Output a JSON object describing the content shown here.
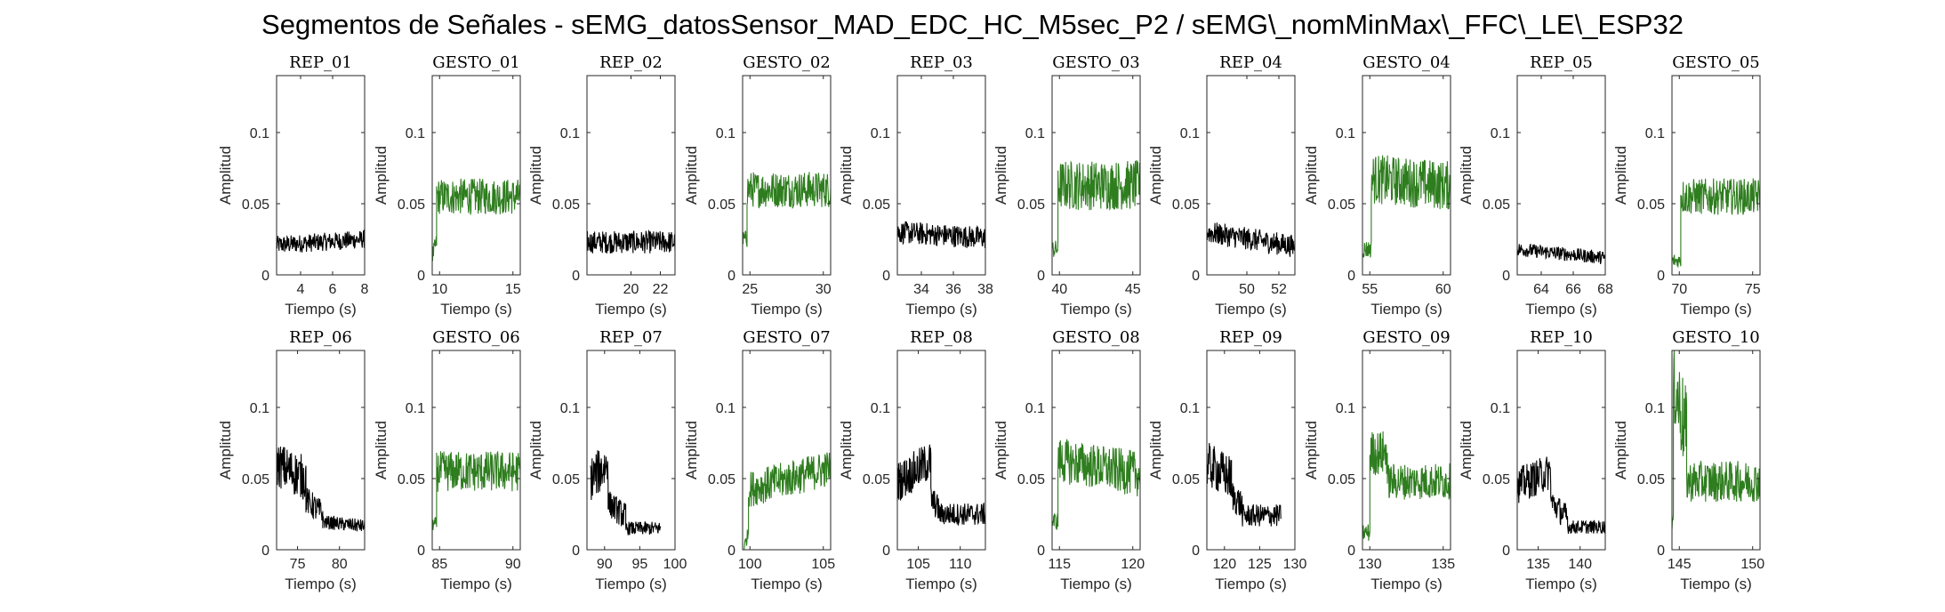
{
  "figure": {
    "title": "Segmentos de Señales - sEMG_datosSensor_MAD_EDC_HC_M5sec_P2 / sEMG\\_nomMinMax\\_FFC\\_LE\\_ESP32",
    "colors": {
      "rep": "#000000",
      "gesto": "#2e7d1e",
      "axes": "#262626"
    }
  },
  "chart_data": [
    {
      "type": "line",
      "title": "REP_01",
      "xlabel": "Tiempo (s)",
      "ylabel": "Amplitud",
      "xlim": [
        2.5,
        8
      ],
      "ylim": [
        0,
        0.14
      ],
      "xticks": [
        4,
        6,
        8
      ],
      "yticks": [
        0,
        0.05,
        0.1
      ],
      "ytick_labels": [
        "0",
        "0.05",
        "0.1"
      ],
      "series": [
        {
          "color": "#000000",
          "segments": [
            {
              "x_start": 2.5,
              "x_end": 8.0,
              "level": 0.023,
              "noise": 0.004,
              "trend": 0.004
            }
          ]
        }
      ]
    },
    {
      "type": "line",
      "title": "GESTO_01",
      "xlabel": "Tiempo (s)",
      "ylabel": "Amplitud",
      "xlim": [
        9.5,
        15.5
      ],
      "ylim": [
        0,
        0.14
      ],
      "xticks": [
        10,
        15
      ],
      "yticks": [
        0,
        0.05,
        0.1
      ],
      "ytick_labels": [
        "0",
        "0.05",
        "0.1"
      ],
      "series": [
        {
          "color": "#2e7d1e",
          "segments": [
            {
              "x_start": 9.5,
              "x_end": 9.8,
              "level": 0.018,
              "noise": 0.004,
              "trend": 0.01
            },
            {
              "x_start": 9.8,
              "x_end": 15.5,
              "level": 0.055,
              "noise": 0.008,
              "trend": 0.0
            }
          ]
        }
      ]
    },
    {
      "type": "line",
      "title": "REP_02",
      "xlabel": "Tiempo (s)",
      "ylabel": "Amplitud",
      "xlim": [
        17,
        23
      ],
      "ylim": [
        0,
        0.14
      ],
      "xticks": [
        20,
        22
      ],
      "yticks": [
        0,
        0.05,
        0.1
      ],
      "ytick_labels": [
        "0",
        "0.05",
        "0.1"
      ],
      "series": [
        {
          "color": "#000000",
          "segments": [
            {
              "x_start": 17.0,
              "x_end": 23.0,
              "level": 0.023,
              "noise": 0.005,
              "trend": 0.0
            }
          ]
        }
      ]
    },
    {
      "type": "line",
      "title": "GESTO_02",
      "xlabel": "Tiempo (s)",
      "ylabel": "Amplitud",
      "xlim": [
        24.5,
        30.5
      ],
      "ylim": [
        0,
        0.14
      ],
      "xticks": [
        25,
        30
      ],
      "yticks": [
        0,
        0.05,
        0.1
      ],
      "ytick_labels": [
        "0",
        "0.05",
        "0.1"
      ],
      "series": [
        {
          "color": "#2e7d1e",
          "segments": [
            {
              "x_start": 24.5,
              "x_end": 24.8,
              "level": 0.025,
              "noise": 0.004,
              "trend": 0.0
            },
            {
              "x_start": 24.8,
              "x_end": 30.5,
              "level": 0.06,
              "noise": 0.008,
              "trend": 0.0
            }
          ]
        }
      ]
    },
    {
      "type": "line",
      "title": "REP_03",
      "xlabel": "Tiempo (s)",
      "ylabel": "Amplitud",
      "xlim": [
        32.5,
        38
      ],
      "ylim": [
        0,
        0.14
      ],
      "xticks": [
        34,
        36,
        38
      ],
      "yticks": [
        0,
        0.05,
        0.1
      ],
      "ytick_labels": [
        "0",
        "0.05",
        "0.1"
      ],
      "series": [
        {
          "color": "#000000",
          "segments": [
            {
              "x_start": 32.5,
              "x_end": 38.0,
              "level": 0.028,
              "noise": 0.005,
              "trend": -0.004
            }
          ]
        }
      ]
    },
    {
      "type": "line",
      "title": "GESTO_03",
      "xlabel": "Tiempo (s)",
      "ylabel": "Amplitud",
      "xlim": [
        39.5,
        45.5
      ],
      "ylim": [
        0,
        0.14
      ],
      "xticks": [
        40,
        45
      ],
      "yticks": [
        0,
        0.05,
        0.1
      ],
      "ytick_labels": [
        "0",
        "0.05",
        "0.1"
      ],
      "series": [
        {
          "color": "#2e7d1e",
          "segments": [
            {
              "x_start": 39.5,
              "x_end": 39.9,
              "level": 0.018,
              "noise": 0.004,
              "trend": 0.0
            },
            {
              "x_start": 39.9,
              "x_end": 45.5,
              "level": 0.063,
              "noise": 0.011,
              "trend": 0.0
            }
          ]
        }
      ]
    },
    {
      "type": "line",
      "title": "REP_04",
      "xlabel": "Tiempo (s)",
      "ylabel": "Amplitud",
      "xlim": [
        47.5,
        53
      ],
      "ylim": [
        0,
        0.14
      ],
      "xticks": [
        50,
        52
      ],
      "yticks": [
        0,
        0.05,
        0.1
      ],
      "ytick_labels": [
        "0",
        "0.05",
        "0.1"
      ],
      "series": [
        {
          "color": "#000000",
          "segments": [
            {
              "x_start": 47.5,
              "x_end": 53.0,
              "level": 0.025,
              "noise": 0.005,
              "trend": -0.01
            }
          ]
        }
      ]
    },
    {
      "type": "line",
      "title": "GESTO_04",
      "xlabel": "Tiempo (s)",
      "ylabel": "Amplitud",
      "xlim": [
        54.5,
        60.5
      ],
      "ylim": [
        0,
        0.14
      ],
      "xticks": [
        55,
        60
      ],
      "yticks": [
        0,
        0.05,
        0.1
      ],
      "ytick_labels": [
        "0",
        "0.05",
        "0.1"
      ],
      "series": [
        {
          "color": "#2e7d1e",
          "segments": [
            {
              "x_start": 54.5,
              "x_end": 55.1,
              "level": 0.018,
              "noise": 0.004,
              "trend": 0.0
            },
            {
              "x_start": 55.1,
              "x_end": 60.5,
              "level": 0.065,
              "noise": 0.011,
              "trend": -0.005
            }
          ]
        }
      ]
    },
    {
      "type": "line",
      "title": "REP_05",
      "xlabel": "Tiempo (s)",
      "ylabel": "Amplitud",
      "xlim": [
        62.5,
        68
      ],
      "ylim": [
        0,
        0.14
      ],
      "xticks": [
        64,
        66,
        68
      ],
      "yticks": [
        0,
        0.05,
        0.1
      ],
      "ytick_labels": [
        "0",
        "0.05",
        "0.1"
      ],
      "series": [
        {
          "color": "#000000",
          "segments": [
            {
              "x_start": 62.5,
              "x_end": 68.0,
              "level": 0.015,
              "noise": 0.003,
              "trend": -0.006
            }
          ]
        }
      ]
    },
    {
      "type": "line",
      "title": "GESTO_05",
      "xlabel": "Tiempo (s)",
      "ylabel": "Amplitud",
      "xlim": [
        69.5,
        75.5
      ],
      "ylim": [
        0,
        0.14
      ],
      "xticks": [
        70,
        75
      ],
      "yticks": [
        0,
        0.05,
        0.1
      ],
      "ytick_labels": [
        "0",
        "0.05",
        "0.1"
      ],
      "series": [
        {
          "color": "#2e7d1e",
          "segments": [
            {
              "x_start": 69.5,
              "x_end": 70.1,
              "level": 0.01,
              "noise": 0.003,
              "trend": 0.0
            },
            {
              "x_start": 70.1,
              "x_end": 75.5,
              "level": 0.055,
              "noise": 0.008,
              "trend": 0.0
            }
          ]
        }
      ]
    },
    {
      "type": "line",
      "title": "REP_06",
      "xlabel": "Tiempo (s)",
      "ylabel": "Amplitud",
      "xlim": [
        72.5,
        83
      ],
      "ylim": [
        0,
        0.14
      ],
      "xticks": [
        75,
        80
      ],
      "yticks": [
        0,
        0.05,
        0.1
      ],
      "ytick_labels": [
        "0",
        "0.05",
        "0.1"
      ],
      "series": [
        {
          "color": "#000000",
          "segments": [
            {
              "x_start": 72.5,
              "x_end": 76.0,
              "level": 0.055,
              "noise": 0.01,
              "trend": -0.01
            },
            {
              "x_start": 76.0,
              "x_end": 78.0,
              "level": 0.03,
              "noise": 0.006,
              "trend": -0.01
            },
            {
              "x_start": 78.0,
              "x_end": 83.0,
              "level": 0.018,
              "noise": 0.003,
              "trend": -0.003
            }
          ]
        }
      ]
    },
    {
      "type": "line",
      "title": "GESTO_06",
      "xlabel": "Tiempo (s)",
      "ylabel": "Amplitud",
      "xlim": [
        84.5,
        90.5
      ],
      "ylim": [
        0,
        0.14
      ],
      "xticks": [
        85,
        90
      ],
      "yticks": [
        0,
        0.05,
        0.1
      ],
      "ytick_labels": [
        "0",
        "0.05",
        "0.1"
      ],
      "series": [
        {
          "color": "#2e7d1e",
          "segments": [
            {
              "x_start": 84.5,
              "x_end": 84.8,
              "level": 0.018,
              "noise": 0.003,
              "trend": 0.0
            },
            {
              "x_start": 84.8,
              "x_end": 90.5,
              "level": 0.055,
              "noise": 0.009,
              "trend": 0.0
            }
          ]
        }
      ]
    },
    {
      "type": "line",
      "title": "REP_07",
      "xlabel": "Tiempo (s)",
      "ylabel": "Amplitud",
      "xlim": [
        87.5,
        100
      ],
      "ylim": [
        0,
        0.14
      ],
      "xticks": [
        90,
        95,
        100
      ],
      "yticks": [
        0,
        0.05,
        0.1
      ],
      "ytick_labels": [
        "0",
        "0.05",
        "0.1"
      ],
      "series": [
        {
          "color": "#000000",
          "segments": [
            {
              "x_start": 88.0,
              "x_end": 90.5,
              "level": 0.055,
              "noise": 0.01,
              "trend": 0.01
            },
            {
              "x_start": 90.5,
              "x_end": 93.0,
              "level": 0.028,
              "noise": 0.006,
              "trend": -0.01
            },
            {
              "x_start": 93.0,
              "x_end": 98.0,
              "level": 0.015,
              "noise": 0.003,
              "trend": 0.0
            }
          ]
        }
      ]
    },
    {
      "type": "line",
      "title": "GESTO_07",
      "xlabel": "Tiempo (s)",
      "ylabel": "Amplitud",
      "xlim": [
        99.5,
        105.5
      ],
      "ylim": [
        0,
        0.14
      ],
      "xticks": [
        100,
        105
      ],
      "yticks": [
        0,
        0.05,
        0.1
      ],
      "ytick_labels": [
        "0",
        "0.05",
        "0.1"
      ],
      "series": [
        {
          "color": "#2e7d1e",
          "segments": [
            {
              "x_start": 99.5,
              "x_end": 99.9,
              "level": 0.005,
              "noise": 0.003,
              "trend": 0.015
            },
            {
              "x_start": 99.9,
              "x_end": 105.5,
              "level": 0.05,
              "noise": 0.008,
              "trend": 0.015
            }
          ]
        }
      ]
    },
    {
      "type": "line",
      "title": "REP_08",
      "xlabel": "Tiempo (s)",
      "ylabel": "Amplitud",
      "xlim": [
        102.5,
        113
      ],
      "ylim": [
        0,
        0.14
      ],
      "xticks": [
        105,
        110
      ],
      "yticks": [
        0,
        0.05,
        0.1
      ],
      "ytick_labels": [
        "0",
        "0.05",
        "0.1"
      ],
      "series": [
        {
          "color": "#000000",
          "segments": [
            {
              "x_start": 102.5,
              "x_end": 106.5,
              "level": 0.055,
              "noise": 0.009,
              "trend": 0.015
            },
            {
              "x_start": 106.5,
              "x_end": 107.5,
              "level": 0.032,
              "noise": 0.006,
              "trend": -0.008
            },
            {
              "x_start": 107.5,
              "x_end": 113.0,
              "level": 0.025,
              "noise": 0.005,
              "trend": 0.0
            }
          ]
        }
      ]
    },
    {
      "type": "line",
      "title": "GESTO_08",
      "xlabel": "Tiempo (s)",
      "ylabel": "Amplitud",
      "xlim": [
        114.5,
        120.5
      ],
      "ylim": [
        0,
        0.14
      ],
      "xticks": [
        115,
        120
      ],
      "yticks": [
        0,
        0.05,
        0.1
      ],
      "ytick_labels": [
        "0",
        "0.05",
        "0.1"
      ],
      "series": [
        {
          "color": "#2e7d1e",
          "segments": [
            {
              "x_start": 114.5,
              "x_end": 114.9,
              "level": 0.02,
              "noise": 0.004,
              "trend": 0.0
            },
            {
              "x_start": 114.9,
              "x_end": 120.5,
              "level": 0.058,
              "noise": 0.01,
              "trend": -0.01
            }
          ]
        }
      ]
    },
    {
      "type": "line",
      "title": "REP_09",
      "xlabel": "Tiempo (s)",
      "ylabel": "Amplitud",
      "xlim": [
        117.5,
        130
      ],
      "ylim": [
        0,
        0.14
      ],
      "xticks": [
        120,
        125,
        130
      ],
      "yticks": [
        0,
        0.05,
        0.1
      ],
      "ytick_labels": [
        "0",
        "0.05",
        "0.1"
      ],
      "series": [
        {
          "color": "#000000",
          "segments": [
            {
              "x_start": 117.5,
              "x_end": 121.0,
              "level": 0.055,
              "noise": 0.01,
              "trend": -0.01
            },
            {
              "x_start": 121.0,
              "x_end": 122.5,
              "level": 0.035,
              "noise": 0.007,
              "trend": -0.008
            },
            {
              "x_start": 122.5,
              "x_end": 128.0,
              "level": 0.024,
              "noise": 0.005,
              "trend": 0.0
            }
          ]
        }
      ]
    },
    {
      "type": "line",
      "title": "GESTO_09",
      "xlabel": "Tiempo (s)",
      "ylabel": "Amplitud",
      "xlim": [
        129.5,
        135.5
      ],
      "ylim": [
        0,
        0.14
      ],
      "xticks": [
        130,
        135
      ],
      "yticks": [
        0,
        0.05,
        0.1
      ],
      "ytick_labels": [
        "0",
        "0.05",
        "0.1"
      ],
      "series": [
        {
          "color": "#2e7d1e",
          "segments": [
            {
              "x_start": 129.5,
              "x_end": 130.0,
              "level": 0.012,
              "noise": 0.004,
              "trend": 0.0
            },
            {
              "x_start": 130.0,
              "x_end": 131.2,
              "level": 0.068,
              "noise": 0.01,
              "trend": 0.0
            },
            {
              "x_start": 131.2,
              "x_end": 135.5,
              "level": 0.048,
              "noise": 0.008,
              "trend": 0.0
            }
          ]
        }
      ]
    },
    {
      "type": "line",
      "title": "REP_10",
      "xlabel": "Tiempo (s)",
      "ylabel": "Amplitud",
      "xlim": [
        132.5,
        143
      ],
      "ylim": [
        0,
        0.14
      ],
      "xticks": [
        135,
        140
      ],
      "yticks": [
        0,
        0.05,
        0.1
      ],
      "ytick_labels": [
        "0",
        "0.05",
        "0.1"
      ],
      "series": [
        {
          "color": "#000000",
          "segments": [
            {
              "x_start": 132.5,
              "x_end": 136.5,
              "level": 0.05,
              "noise": 0.008,
              "trend": 0.01
            },
            {
              "x_start": 136.5,
              "x_end": 138.5,
              "level": 0.028,
              "noise": 0.006,
              "trend": -0.012
            },
            {
              "x_start": 138.5,
              "x_end": 143.0,
              "level": 0.016,
              "noise": 0.003,
              "trend": 0.0
            }
          ]
        }
      ]
    },
    {
      "type": "line",
      "title": "GESTO_10",
      "xlabel": "Tiempo (s)",
      "ylabel": "Amplitud",
      "xlim": [
        144.5,
        150.5
      ],
      "ylim": [
        0,
        0.14
      ],
      "xticks": [
        145,
        150
      ],
      "yticks": [
        0,
        0.05,
        0.1
      ],
      "ytick_labels": [
        "0",
        "0.05",
        "0.1"
      ],
      "series": [
        {
          "color": "#2e7d1e",
          "segments": [
            {
              "x_start": 144.5,
              "x_end": 144.6,
              "level": 0.02,
              "noise": 0.004,
              "trend": 0.0
            },
            {
              "x_start": 144.6,
              "x_end": 145.5,
              "level": 0.1,
              "noise": 0.02,
              "trend": -0.04
            },
            {
              "x_start": 145.5,
              "x_end": 150.5,
              "level": 0.048,
              "noise": 0.009,
              "trend": 0.0
            }
          ]
        }
      ]
    }
  ]
}
